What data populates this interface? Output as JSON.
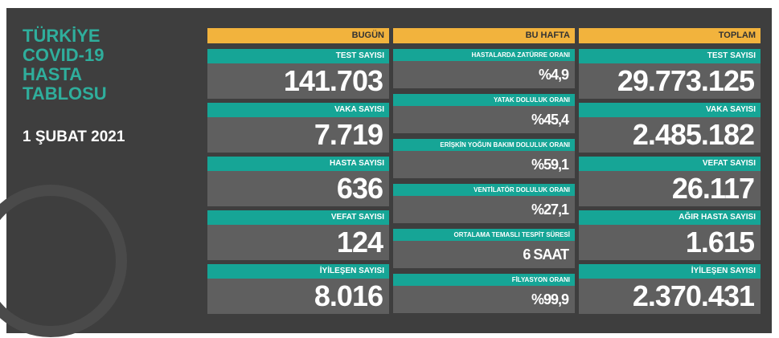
{
  "title": [
    "TÜRKİYE",
    "COVID-19",
    "HASTA",
    "TABLOSU"
  ],
  "date": "1 ŞUBAT 2021",
  "columns": [
    {
      "header": "BUGÜN",
      "cells": [
        {
          "label": "TEST SAYISI",
          "value": "141.703"
        },
        {
          "label": "VAKA SAYISI",
          "value": "7.719"
        },
        {
          "label": "HASTA SAYISI",
          "value": "636"
        },
        {
          "label": "VEFAT SAYISI",
          "value": "124"
        },
        {
          "label": "İYİLEŞEN SAYISI",
          "value": "8.016"
        }
      ]
    },
    {
      "header": "BU HAFTA",
      "cells": [
        {
          "label": "HASTALARDA ZATÜRRE ORANI",
          "value": "%4,9"
        },
        {
          "label": "YATAK DOLULUK ORANI",
          "value": "%45,4"
        },
        {
          "label": "ERİŞKİN YOĞUN BAKIM DOLULUK ORANI",
          "value": "%59,1"
        },
        {
          "label": "VENTİLATÖR DOLULUK ORANI",
          "value": "%27,1"
        },
        {
          "label": "ORTALAMA TEMASLI TESPİT SÜRESİ",
          "value": "6 SAAT"
        },
        {
          "label": "FİLYASYON ORANI",
          "value": "%99,9"
        }
      ]
    },
    {
      "header": "TOPLAM",
      "cells": [
        {
          "label": "TEST SAYISI",
          "value": "29.773.125"
        },
        {
          "label": "VAKA SAYISI",
          "value": "2.485.182"
        },
        {
          "label": "VEFAT SAYISI",
          "value": "26.117"
        },
        {
          "label": "AĞIR HASTA SAYISI",
          "value": "1.615"
        },
        {
          "label": "İYİLEŞEN SAYISI",
          "value": "2.370.431"
        }
      ]
    }
  ]
}
